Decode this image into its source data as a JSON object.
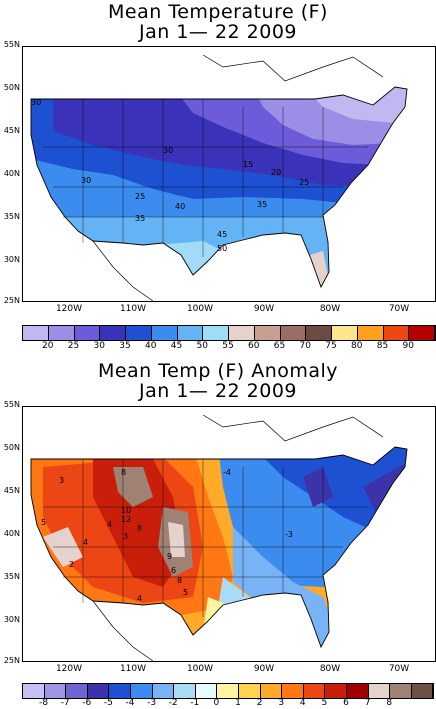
{
  "top": {
    "title_line1": "Mean Temperature (F)",
    "title_line2": "Jan 1— 22 2009",
    "lat_labels": [
      "55N",
      "50N",
      "45N",
      "40N",
      "35N",
      "30N",
      "25N"
    ],
    "lon_labels": [
      "120W",
      "110W",
      "100W",
      "90W",
      "80W",
      "70W"
    ],
    "contour_labels": [
      "30",
      "30",
      "25",
      "35",
      "40",
      "45",
      "50",
      "30",
      "15",
      "20",
      "25",
      "35"
    ],
    "legend_colors": [
      "#c0b8f0",
      "#9a8ee6",
      "#6c5cd9",
      "#3a32b8",
      "#1e50d2",
      "#3c8cf0",
      "#64b4f5",
      "#a0dcf8",
      "#e6d2cc",
      "#c89f91",
      "#9a6e64",
      "#6e4b41",
      "#ffe68c",
      "#ffa01e",
      "#f04614",
      "#b40000"
    ],
    "legend_ticks": [
      "20",
      "25",
      "30",
      "35",
      "40",
      "45",
      "50",
      "55",
      "60",
      "65",
      "70",
      "75",
      "80",
      "85",
      "90"
    ]
  },
  "bottom": {
    "title_line1": "Mean Temp (F) Anomaly",
    "title_line2": "Jan 1— 22 2009",
    "lat_labels": [
      "55N",
      "50N",
      "45N",
      "40N",
      "35N",
      "30N",
      "25N"
    ],
    "lon_labels": [
      "120W",
      "110W",
      "100W",
      "90W",
      "80W",
      "70W"
    ],
    "contour_labels": [
      "3",
      "5",
      "4",
      "2",
      "8",
      "10",
      "12",
      "4",
      "8",
      "3",
      "9",
      "8",
      "6",
      "5",
      "4",
      "-4",
      "-3"
    ],
    "legend_colors": [
      "#c8c0f2",
      "#a096e6",
      "#7064d2",
      "#3c32aa",
      "#1e50d2",
      "#3c8cf0",
      "#78b4f5",
      "#aadcf8",
      "#e6faff",
      "#fff5a0",
      "#ffd250",
      "#ffaa28",
      "#ff7814",
      "#eb4614",
      "#c81e0a",
      "#a00000",
      "#e6d2cc",
      "#a08274",
      "#6e5046"
    ],
    "legend_ticks": [
      "-8",
      "-7",
      "-6",
      "-5",
      "-4",
      "-3",
      "-2",
      "-1",
      "0",
      "1",
      "2",
      "3",
      "4",
      "5",
      "6",
      "7",
      "8"
    ]
  }
}
